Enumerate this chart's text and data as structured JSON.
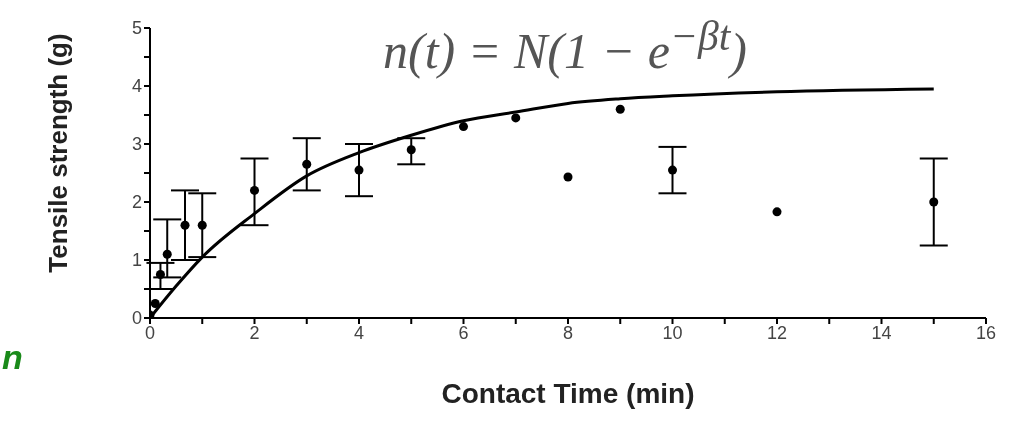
{
  "chart_data": {
    "type": "scatter",
    "xlabel": "Contact Time (min)",
    "ylabel": "Tensile strength (g)",
    "annotations": [
      "n(t) = N(1 − e$^{−βt}$)",
      "n"
    ],
    "series": [
      {
        "marker": "circle",
        "color": "#000000",
        "x": [
          0,
          0.1,
          0.2,
          0.33,
          0.67,
          1,
          2,
          3,
          4,
          5,
          6,
          7,
          8,
          9,
          10,
          12,
          15
        ],
        "values": [
          0.05,
          0.25,
          0.75,
          1.1,
          1.6,
          1.6,
          2.2,
          2.65,
          2.55,
          2.9,
          3.3,
          3.45,
          2.43,
          3.6,
          2.55,
          1.83,
          2.0
        ],
        "errors": [
          null,
          null,
          [
            0.5,
            0.95
          ],
          [
            0.7,
            1.7
          ],
          [
            1.0,
            2.2
          ],
          [
            1.05,
            2.15
          ],
          [
            1.6,
            2.75
          ],
          [
            2.2,
            3.1
          ],
          [
            2.1,
            3.0
          ],
          [
            2.65,
            3.1
          ],
          null,
          null,
          null,
          null,
          [
            2.15,
            2.95
          ],
          null,
          [
            1.25,
            2.75
          ]
        ]
      },
      {
        "type": "line",
        "marker": "none",
        "color": "#000000",
        "x": [
          0,
          0.5,
          1,
          2,
          3,
          4,
          5,
          6,
          7,
          8,
          9,
          10,
          12,
          15
        ],
        "values": [
          0,
          0.55,
          1.05,
          1.8,
          2.45,
          2.85,
          3.15,
          3.4,
          3.55,
          3.7,
          3.78,
          3.83,
          3.9,
          3.95
        ]
      }
    ],
    "xlim": [
      0,
      16
    ],
    "xticks": [
      0,
      {
        "value": 1,
        "label": null
      },
      2,
      {
        "value": 3,
        "label": null
      },
      4,
      {
        "value": 5,
        "label": null
      },
      6,
      {
        "value": 7,
        "label": null
      },
      8,
      {
        "value": 9,
        "label": null
      },
      10,
      {
        "value": 11,
        "label": null
      },
      12,
      {
        "value": 13,
        "label": null
      },
      14,
      {
        "value": 15,
        "label": null
      },
      16
    ],
    "ylim": [
      0,
      5
    ],
    "yticks": [
      0,
      {
        "value": 0.5,
        "label": null
      },
      1,
      {
        "value": 1.5,
        "label": null
      },
      2,
      {
        "value": 2.5,
        "label": null
      },
      3,
      {
        "value": 3.5,
        "label": null
      },
      4,
      {
        "value": 4.5,
        "label": null
      },
      5
    ],
    "line_style": "solid",
    "grid": false
  }
}
